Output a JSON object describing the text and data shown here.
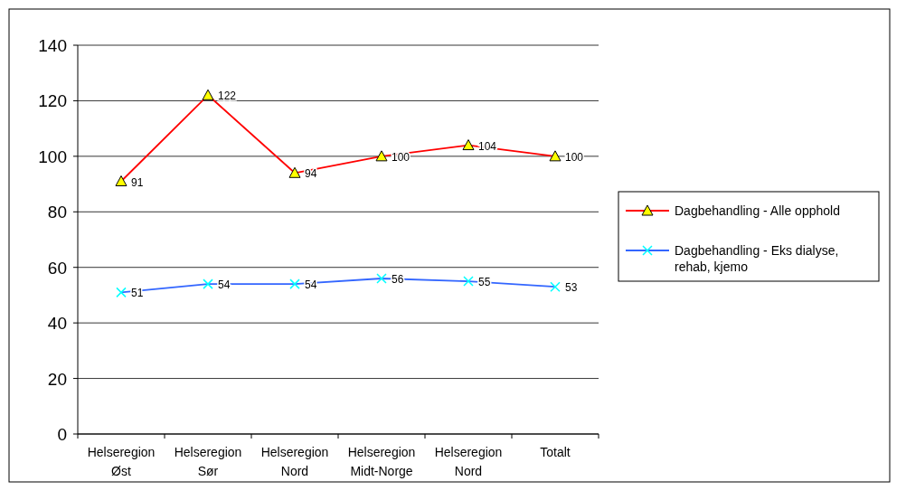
{
  "chart_data": {
    "type": "line",
    "categories": [
      "Helseregion Øst",
      "Helseregion Sør",
      "Helseregion Nord",
      "Helseregion Midt-Norge",
      "Helseregion Nord",
      "Totalt"
    ],
    "series": [
      {
        "name": "Dagbehandling - Alle opphold",
        "color": "#ff0000",
        "marker": "triangle",
        "values": [
          91,
          122,
          94,
          100,
          104,
          100
        ]
      },
      {
        "name": "Dagbehandling - Eks dialyse, rehab, kjemo",
        "color": "#3366ff",
        "marker": "cross",
        "values": [
          51,
          54,
          54,
          56,
          55,
          53
        ]
      }
    ],
    "ylim": [
      0,
      140
    ],
    "yticks": [
      0,
      20,
      40,
      60,
      80,
      100,
      120,
      140
    ],
    "grid": "y",
    "legend": "right",
    "data_labels": true
  }
}
